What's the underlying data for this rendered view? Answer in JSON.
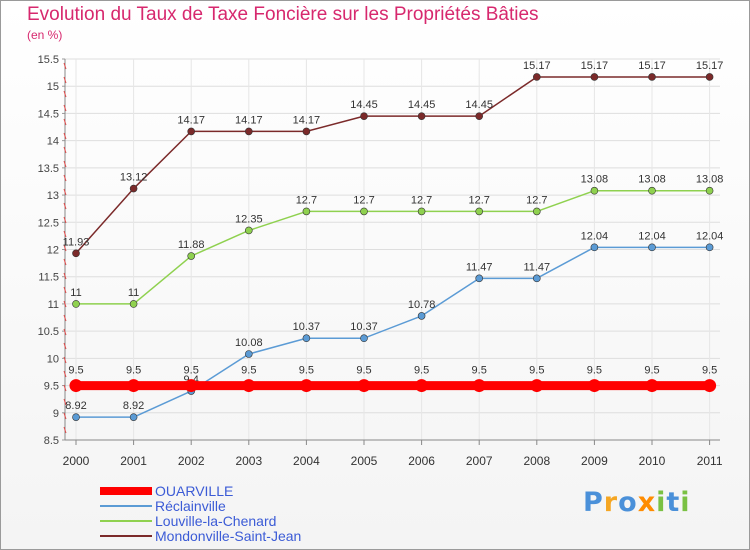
{
  "chart_data": {
    "type": "line",
    "title": "Evolution du Taux de Taxe Foncière sur les Propriétés Bâties",
    "subtitle": "(en %)",
    "categories": [
      "2000",
      "2001",
      "2002",
      "2003",
      "2004",
      "2005",
      "2006",
      "2007",
      "2008",
      "2009",
      "2010",
      "2011"
    ],
    "ylim": [
      8.5,
      15.5
    ],
    "yticks": [
      "8.5",
      "9",
      "9.5",
      "10",
      "10.5",
      "11",
      "11.5",
      "12",
      "12.5",
      "13",
      "13.5",
      "14",
      "14.5",
      "15",
      "15.5"
    ],
    "grid": true,
    "legend_position": "bottom-left",
    "series": [
      {
        "name": "OUARVILLE",
        "color": "#ff0000",
        "values": [
          9.5,
          9.5,
          9.5,
          9.5,
          9.5,
          9.5,
          9.5,
          9.5,
          9.5,
          9.5,
          9.5,
          9.5
        ],
        "labels": [
          "9.5",
          "9.5",
          "9.5",
          "9.5",
          "9.5",
          "9.5",
          "9.5",
          "9.5",
          "9.5",
          "9.5",
          "9.5",
          "9.5"
        ]
      },
      {
        "name": "Réclainville",
        "color": "#5b9bd5",
        "values": [
          8.92,
          8.92,
          9.4,
          10.08,
          10.37,
          10.37,
          10.78,
          11.47,
          11.47,
          12.04,
          12.04,
          12.04
        ],
        "labels": [
          "8.92",
          "8.92",
          "9.4",
          "10.08",
          "10.37",
          "10.37",
          "10.78",
          "11.47",
          "11.47",
          "12.04",
          "12.04",
          "12.04"
        ]
      },
      {
        "name": "Louville-la-Chenard",
        "color": "#8fd14f",
        "values": [
          11,
          11,
          11.88,
          12.35,
          12.7,
          12.7,
          12.7,
          12.7,
          12.7,
          13.08,
          13.08,
          13.08
        ],
        "labels": [
          "11",
          "11",
          "11.88",
          "12.35",
          "12.7",
          "12.7",
          "12.7",
          "12.7",
          "12.7",
          "13.08",
          "13.08",
          "13.08"
        ]
      },
      {
        "name": "Mondonville-Saint-Jean",
        "color": "#7b2a2a",
        "values": [
          11.93,
          13.12,
          14.17,
          14.17,
          14.17,
          14.45,
          14.45,
          14.45,
          15.17,
          15.17,
          15.17,
          15.17
        ],
        "labels": [
          "11.93",
          "13.12",
          "14.17",
          "14.17",
          "14.17",
          "14.45",
          "14.45",
          "14.45",
          "15.17",
          "15.17",
          "15.17",
          "15.17"
        ]
      }
    ]
  },
  "logo": {
    "letters": [
      "P",
      "r",
      "o",
      "x",
      "i",
      "t",
      "i"
    ],
    "colors": [
      "#4a90d9",
      "#f5a623",
      "#4a90d9",
      "#ff8c00",
      "#7ac143",
      "#4a90d9",
      "#7ac143"
    ]
  }
}
